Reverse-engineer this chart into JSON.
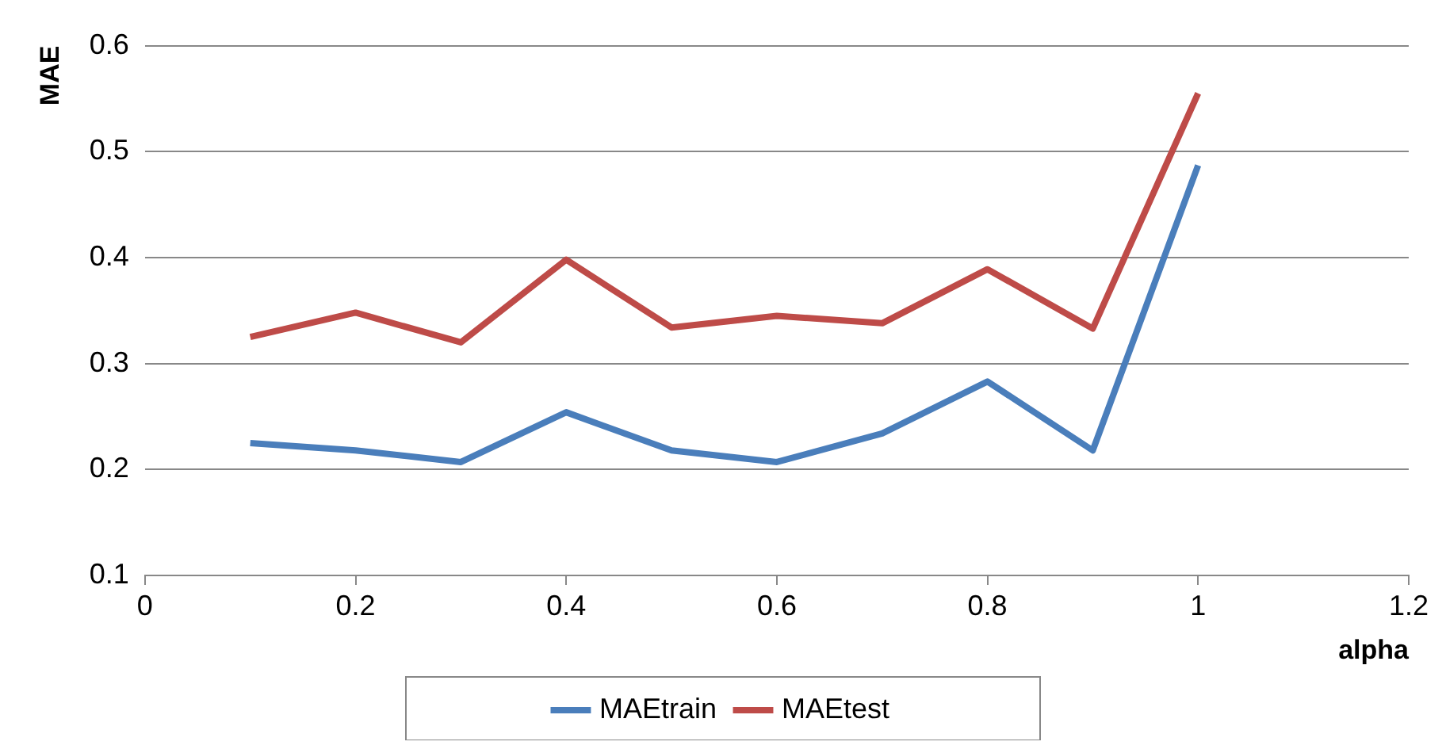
{
  "chart_data": {
    "type": "line",
    "xlabel": "alpha",
    "ylabel": "MAE",
    "x": [
      0.1,
      0.2,
      0.3,
      0.4,
      0.5,
      0.6,
      0.7,
      0.8,
      0.9,
      1
    ],
    "series": [
      {
        "name": "MAEtrain",
        "color": "#4a7ebb",
        "values": [
          0.225,
          0.218,
          0.207,
          0.254,
          0.218,
          0.207,
          0.234,
          0.283,
          0.218,
          0.487
        ]
      },
      {
        "name": "MAEtest",
        "color": "#be4b48",
        "values": [
          0.325,
          0.348,
          0.32,
          0.398,
          0.334,
          0.345,
          0.338,
          0.389,
          0.333,
          0.555
        ]
      }
    ],
    "xlim": [
      0,
      1.2
    ],
    "xticks": [
      0,
      0.2,
      0.4,
      0.6,
      0.8,
      1,
      1.2
    ],
    "ylim": [
      0.1,
      0.6
    ],
    "yticks": [
      0.1,
      0.2,
      0.3,
      0.4,
      0.5,
      0.6
    ],
    "grid": "y",
    "legend": "bottom",
    "marker": "none",
    "line_style": "solid"
  }
}
